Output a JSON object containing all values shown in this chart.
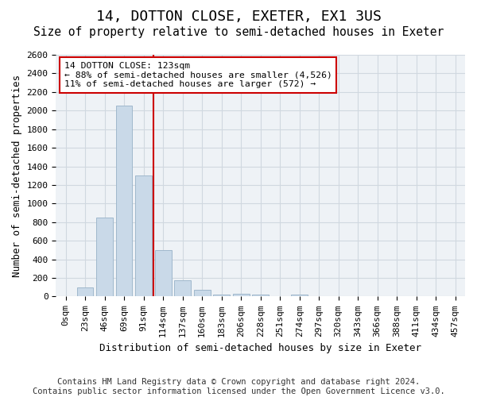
{
  "title": "14, DOTTON CLOSE, EXETER, EX1 3US",
  "subtitle": "Size of property relative to semi-detached houses in Exeter",
  "xlabel": "Distribution of semi-detached houses by size in Exeter",
  "ylabel": "Number of semi-detached properties",
  "footer_line1": "Contains HM Land Registry data © Crown copyright and database right 2024.",
  "footer_line2": "Contains public sector information licensed under the Open Government Licence v3.0.",
  "bin_labels": [
    "0sqm",
    "23sqm",
    "46sqm",
    "69sqm",
    "91sqm",
    "114sqm",
    "137sqm",
    "160sqm",
    "183sqm",
    "206sqm",
    "228sqm",
    "251sqm",
    "274sqm",
    "297sqm",
    "320sqm",
    "343sqm",
    "366sqm",
    "388sqm",
    "411sqm",
    "434sqm",
    "457sqm"
  ],
  "bar_values": [
    0,
    100,
    850,
    2050,
    1300,
    500,
    175,
    75,
    25,
    30,
    25,
    0,
    25,
    0,
    0,
    0,
    0,
    0,
    0,
    0,
    0
  ],
  "bar_color": "#c9d9e8",
  "bar_edge_color": "#a0b8cc",
  "property_label": "14 DOTTON CLOSE: 123sqm",
  "pct_smaller": 88,
  "n_smaller": 4526,
  "pct_larger": 11,
  "n_larger": 572,
  "vline_color": "#cc0000",
  "box_edge_color": "#cc0000",
  "vline_x": 4.5,
  "ylim": [
    0,
    2600
  ],
  "yticks": [
    0,
    200,
    400,
    600,
    800,
    1000,
    1200,
    1400,
    1600,
    1800,
    2000,
    2200,
    2400,
    2600
  ],
  "grid_color": "#d0d8e0",
  "bg_color": "#eef2f6",
  "title_fontsize": 13,
  "subtitle_fontsize": 10.5,
  "label_fontsize": 9,
  "tick_fontsize": 8,
  "footer_fontsize": 7.5,
  "annot_fontsize": 8.2
}
